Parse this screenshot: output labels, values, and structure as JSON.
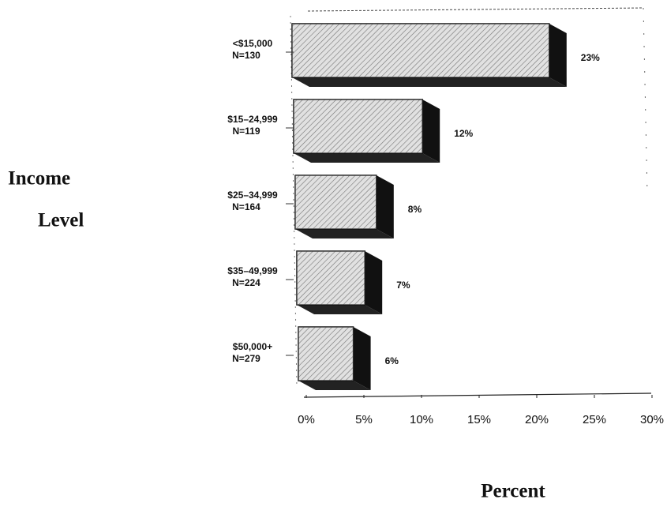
{
  "chart_data": {
    "type": "bar3d_horizontal",
    "ylabel_lines": [
      "Income",
      "Level"
    ],
    "xlabel": "Percent",
    "categories": [
      "<$15,000",
      "$15–24,999",
      "$25–34,999",
      "$35–49,999",
      "$50,000+"
    ],
    "category_counts": [
      "N=130",
      "N=119",
      "N=164",
      "N=224",
      "N=279"
    ],
    "values": [
      23,
      12,
      8,
      7,
      6
    ],
    "value_labels": [
      "23%",
      "12%",
      "8%",
      "7%",
      "6%"
    ],
    "color": "#d8d8d8",
    "xlim": [
      0,
      30
    ],
    "xticks": [
      {
        "value": 0,
        "label": "0%"
      },
      {
        "value": 5,
        "label": "5%"
      },
      {
        "value": 10,
        "label": "10%"
      },
      {
        "value": 15,
        "label": "15%"
      },
      {
        "value": 20,
        "label": "20%"
      },
      {
        "value": 25,
        "label": "25%"
      },
      {
        "value": 30,
        "label": "30%"
      }
    ]
  }
}
